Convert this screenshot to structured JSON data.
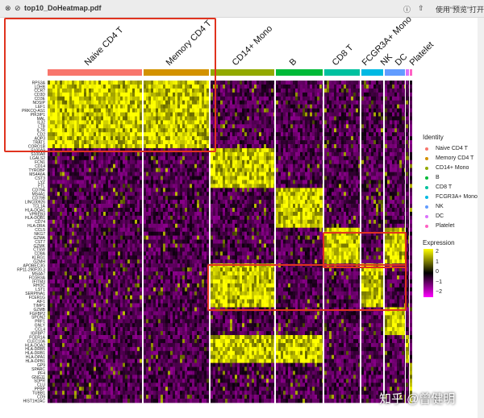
{
  "window": {
    "title": "top10_DoHeatmap.pdf",
    "open_with": "使用“预览”打开",
    "icons": [
      "close-icon",
      "minimize-icon",
      "info-icon",
      "share-icon"
    ]
  },
  "watermark": "知乎 @曾健明",
  "chart_data": {
    "type": "heatmap",
    "groups": [
      "Naive CD4 T",
      "Memory CD4 T",
      "CD14+ Mono",
      "B",
      "CD8 T",
      "FCGR3A+ Mono",
      "NK",
      "DC",
      "Platelet"
    ],
    "group_colors": [
      "#f8766d",
      "#d39200",
      "#93aa00",
      "#00ba38",
      "#00c19f",
      "#00b9e3",
      "#619cff",
      "#db72fb",
      "#ff61c3"
    ],
    "genes": [
      "RPS3A",
      "LDHB",
      "CCR7",
      "CD3D",
      "CD3E",
      "NOSIP",
      "LEF1",
      "PRKCQ-AS1",
      "PIK3IP1",
      "MAL",
      "IL32",
      "LTB",
      "IL7R",
      "CD2",
      "AQP3",
      "TRAT1",
      "CORO1B",
      "S100A9",
      "S100A8",
      "LGALS2",
      "FCN1",
      "CD14",
      "TYROBP",
      "MS4A6A",
      "CST3",
      "LYZ",
      "FTL",
      "CD79A",
      "MS4A1",
      "CD79B",
      "LINC00926",
      "TCL1A",
      "HLA-DQA1",
      "VPREB3",
      "HLA-DQB1",
      "CD74",
      "HLA-DRA",
      "CCL5",
      "NKG7",
      "GZMA",
      "CST7",
      "GZMK",
      "CTSW",
      "CD8A",
      "KLRG1",
      "GZMH",
      "APOBEC3G",
      "RP11-290F20.3",
      "MS4A7",
      "FCGR3A",
      "IFITM3",
      "RHOC",
      "LST1",
      "SERPINA1",
      "FCER1G",
      "AIF1",
      "TIMP1",
      "GZMB",
      "FGFBP2",
      "SPON2",
      "PRF1",
      "GNLY",
      "CCL4",
      "IGFBP7",
      "FCER1A",
      "CLEC10A",
      "HLA-DQA2",
      "HLA-DRB5",
      "HLA-DRB1",
      "HLA-DPA1",
      "HLA-DPB1",
      "GP9",
      "SPARC",
      "PF4",
      "GNG11",
      "SDPR",
      "CLU",
      "PPBP",
      "TUBB1",
      "CD9",
      "HIST1H2AC"
    ],
    "marker_blocks": [
      {
        "from": "RPS3A",
        "to": "CORO1B",
        "high_in": [
          "Naive CD4 T",
          "Memory CD4 T"
        ]
      },
      {
        "from": "S100A9",
        "to": "FTL",
        "high_in": [
          "CD14+ Mono"
        ]
      },
      {
        "from": "CD79A",
        "to": "HLA-DRA",
        "high_in": [
          "B"
        ]
      },
      {
        "from": "CCL5",
        "to": "GZMH",
        "high_in": [
          "CD8 T",
          "NK"
        ]
      },
      {
        "from": "APOBEC3G",
        "to": "TIMP1",
        "high_in": [
          "FCGR3A+ Mono",
          "CD14+ Mono"
        ]
      },
      {
        "from": "GZMB",
        "to": "IGFBP7",
        "high_in": [
          "NK"
        ]
      },
      {
        "from": "FCER1A",
        "to": "HLA-DPB1",
        "high_in": [
          "DC",
          "CD14+ Mono",
          "B"
        ]
      },
      {
        "from": "GP9",
        "to": "HIST1H2AC",
        "high_in": [
          "Platelet"
        ]
      }
    ],
    "legend_identity_title": "Identity",
    "legend_expression_title": "Expression",
    "colorscale": {
      "min": -2,
      "mid": 0,
      "max": 2,
      "colors": [
        "#ff00ff",
        "#000000",
        "#ffff00"
      ],
      "ticks": [
        "2",
        "1",
        "0",
        "−1",
        "−2"
      ]
    }
  }
}
